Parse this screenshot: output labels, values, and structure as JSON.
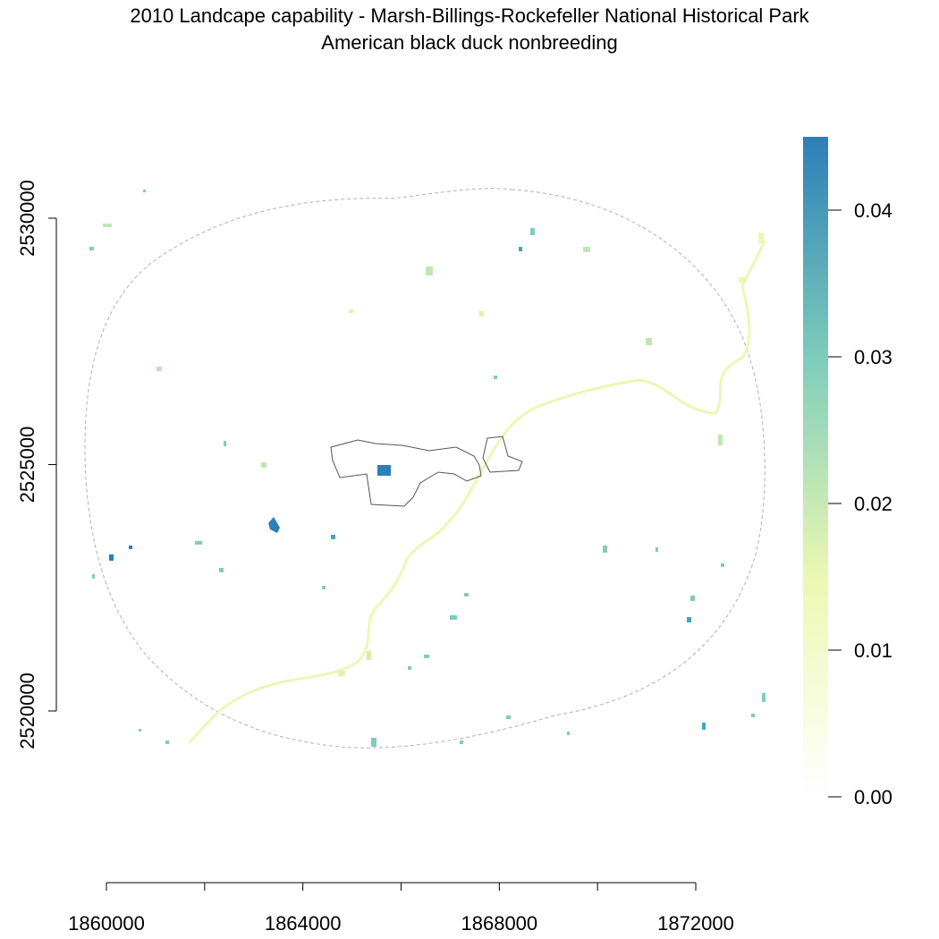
{
  "title": "2010 Landcape capability - Marsh-Billings-Rockefeller National Historical Park",
  "subtitle": "American black duck nonbreeding",
  "map": {
    "x_ticks": [
      1860000,
      1862000,
      1864000,
      1866000,
      1868000,
      1870000,
      1872000
    ],
    "x_labels": [
      "1860000",
      "1864000",
      "1868000",
      "1872000"
    ],
    "y_ticks": [
      2530000,
      2525000,
      2520000
    ],
    "y_labels": [
      "2530000",
      "2525000",
      "2520000"
    ]
  },
  "legend": {
    "labels": [
      "0.04",
      "0.03",
      "0.02",
      "0.01",
      "0.00"
    ],
    "values": [
      0.04,
      0.03,
      0.02,
      0.01,
      0.0
    ],
    "min": 0.0,
    "max": 0.045,
    "colors": [
      "#ffffff",
      "#edf8b1",
      "#7fcdbb",
      "#2c7fb8"
    ]
  },
  "colors": {
    "boundary_park": "#555555",
    "boundary_buffer": "#aaaaaa",
    "river": "#eef6b4",
    "high_cell": "#2c7fb8",
    "mid_cell": "#7fcdbb",
    "low_cell": "#d4eea6"
  }
}
